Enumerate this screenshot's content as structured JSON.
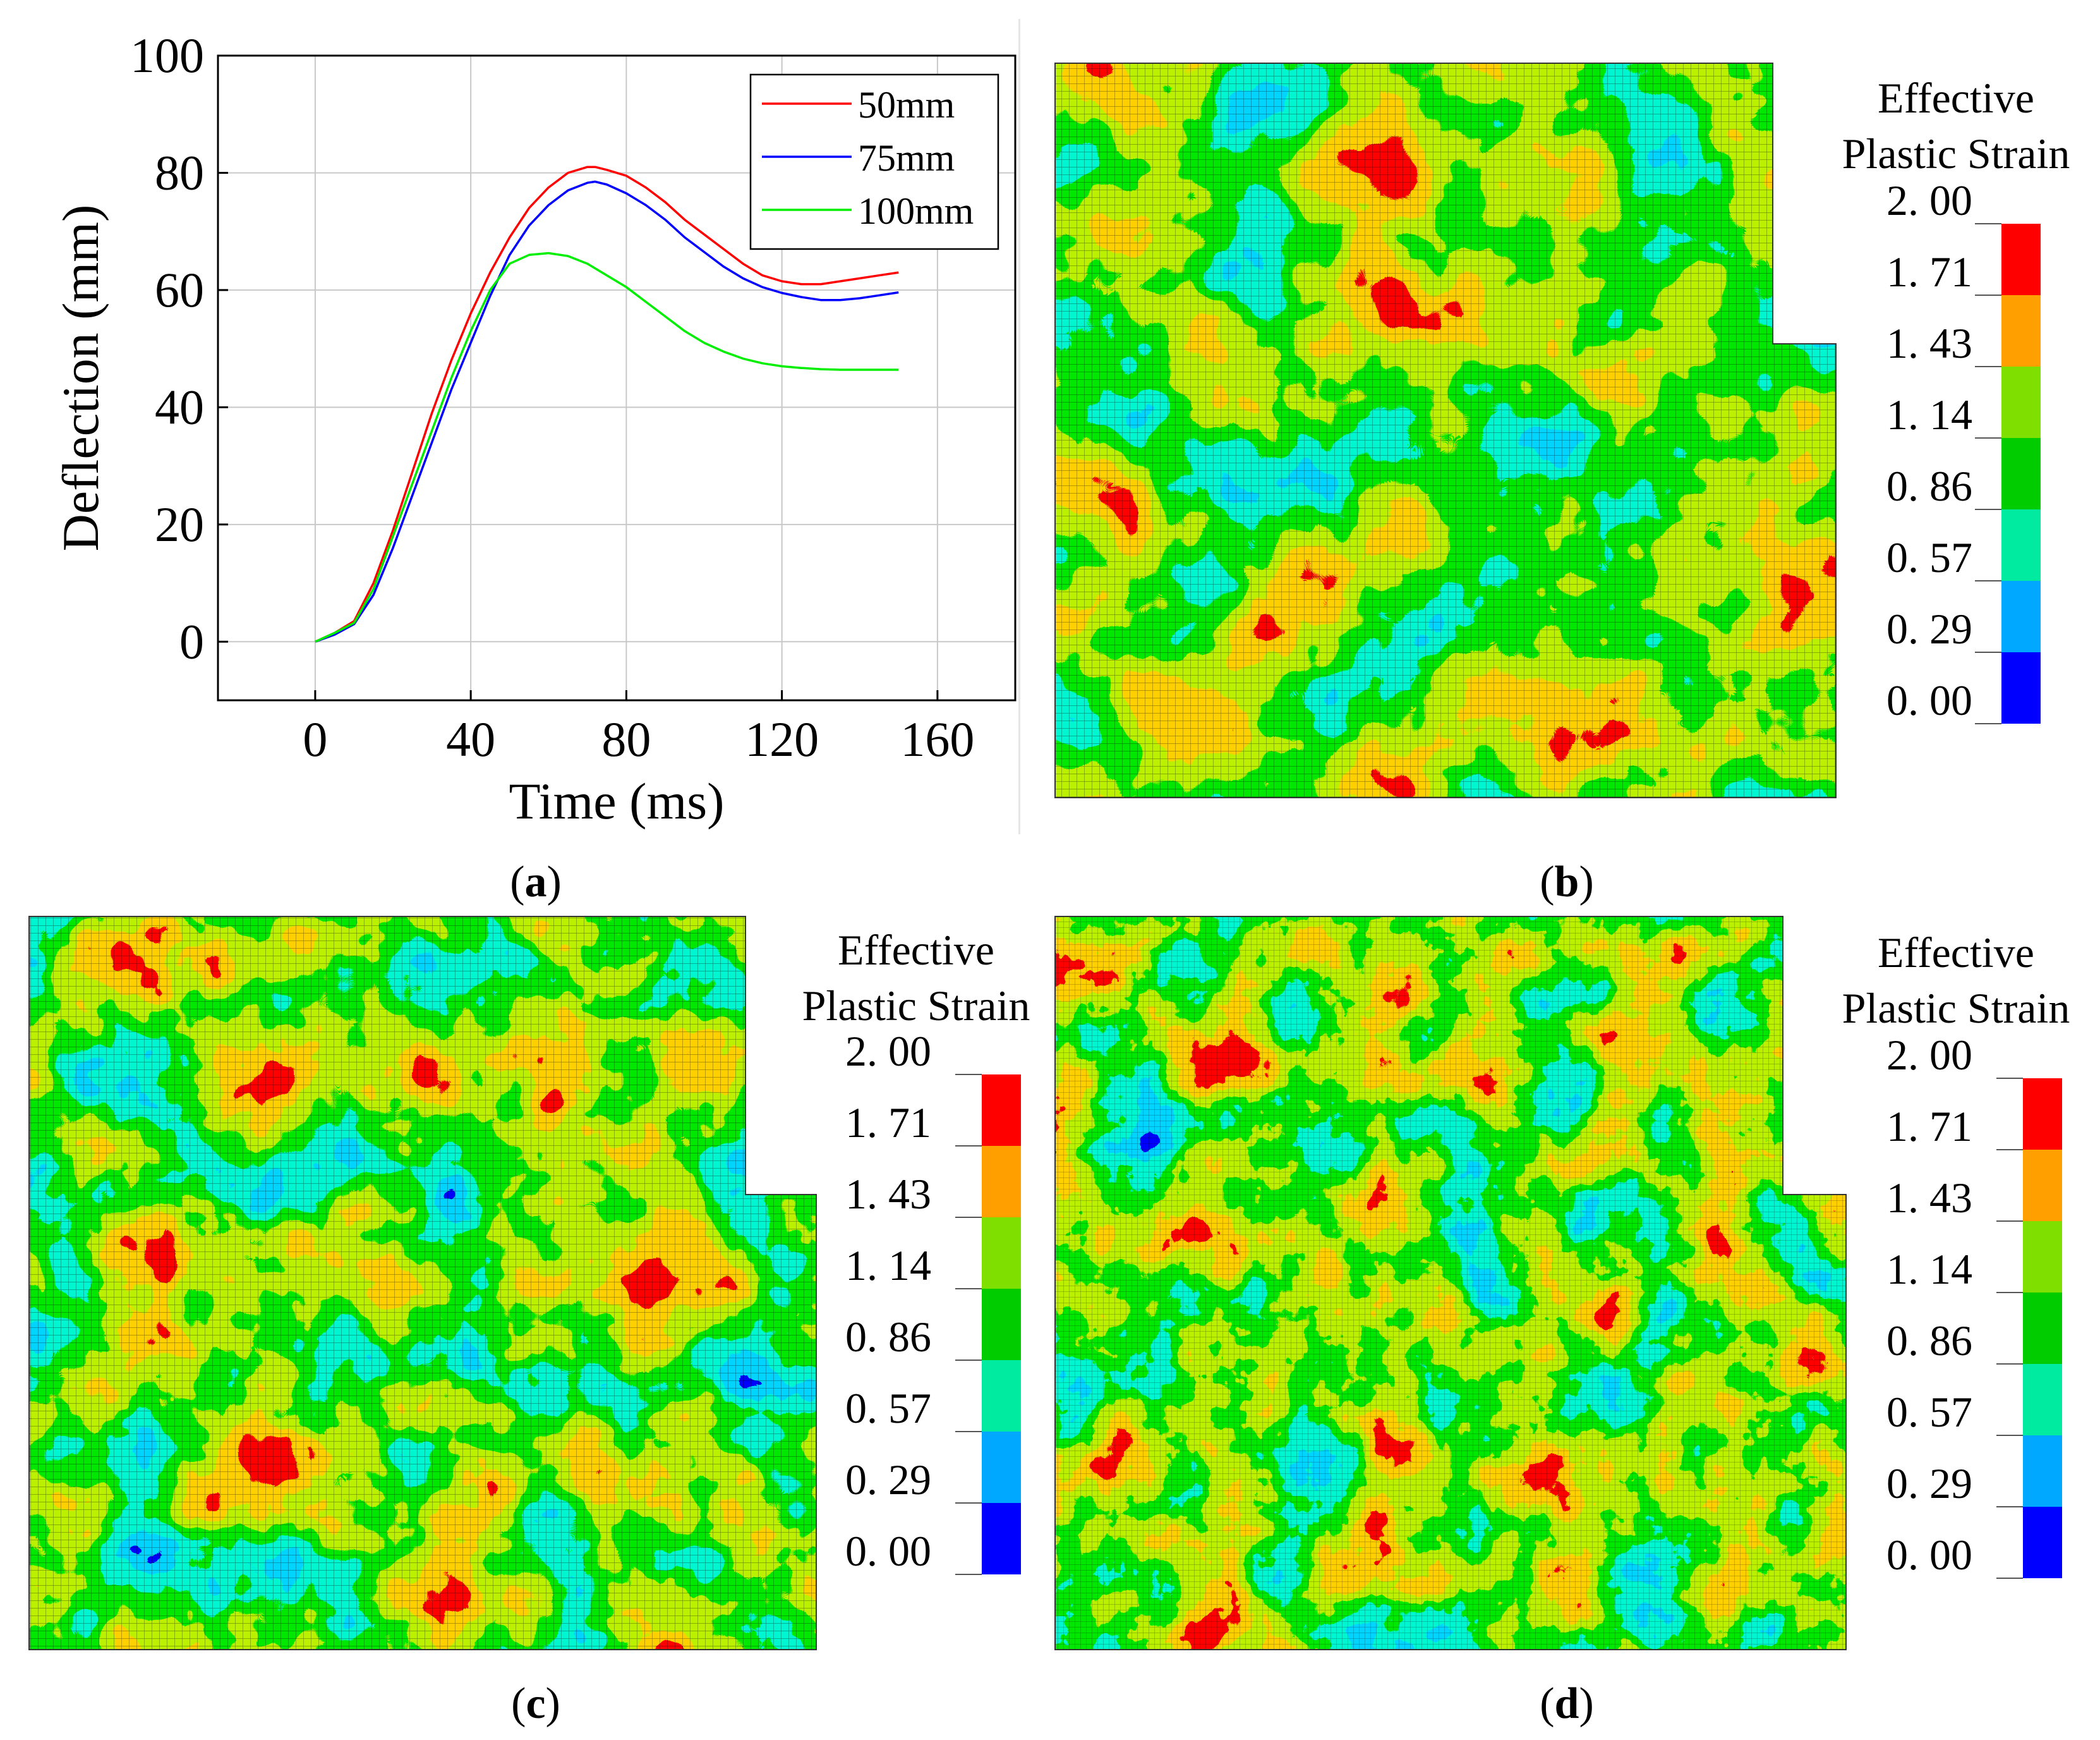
{
  "chart_data": [
    {
      "type": "line",
      "panel": "(a)",
      "xlabel": "Time (ms)",
      "ylabel": "Deflection (mm)",
      "xlim": [
        -25,
        180
      ],
      "ylim": [
        -10,
        100
      ],
      "xticks": [
        0,
        40,
        80,
        120,
        160
      ],
      "yticks": [
        0,
        20,
        40,
        60,
        80,
        100
      ],
      "grid": true,
      "legend_position": "top-right",
      "series": [
        {
          "name": "50mm",
          "color": "#ff0000",
          "x": [
            0,
            5,
            10,
            15,
            20,
            25,
            30,
            35,
            40,
            45,
            50,
            55,
            60,
            65,
            70,
            72,
            75,
            80,
            85,
            90,
            95,
            100,
            105,
            110,
            115,
            120,
            125,
            130,
            135,
            140,
            145,
            150
          ],
          "y": [
            0,
            1.5,
            3.5,
            10,
            19,
            29,
            39,
            48,
            56,
            63,
            69,
            74,
            77.5,
            80,
            81,
            81,
            80.5,
            79.5,
            77.5,
            75,
            72,
            69.5,
            67,
            64.5,
            62.5,
            61.5,
            61,
            61,
            61.5,
            62,
            62.5,
            63
          ]
        },
        {
          "name": "75mm",
          "color": "#0000ff",
          "x": [
            0,
            5,
            10,
            15,
            20,
            25,
            30,
            35,
            40,
            45,
            50,
            55,
            60,
            65,
            70,
            72,
            75,
            80,
            85,
            90,
            95,
            100,
            105,
            110,
            115,
            120,
            125,
            130,
            135,
            140,
            145,
            150
          ],
          "y": [
            0,
            1.2,
            3,
            8,
            16,
            25,
            34,
            43,
            51,
            59,
            66,
            71,
            74.5,
            77,
            78.3,
            78.5,
            78,
            76.5,
            74.5,
            72,
            69,
            66.5,
            64,
            62,
            60.5,
            59.5,
            58.8,
            58.3,
            58.3,
            58.6,
            59.1,
            59.6
          ]
        },
        {
          "name": "100mm",
          "color": "#00ee00",
          "x": [
            0,
            5,
            10,
            15,
            20,
            25,
            30,
            35,
            40,
            45,
            50,
            55,
            60,
            65,
            70,
            75,
            80,
            85,
            90,
            95,
            100,
            105,
            110,
            115,
            120,
            125,
            130,
            135,
            140,
            145,
            150
          ],
          "y": [
            0,
            1.5,
            3.2,
            9,
            18,
            27,
            36,
            45,
            53,
            60,
            64.5,
            66,
            66.3,
            65.8,
            64.5,
            62.5,
            60.5,
            58,
            55.5,
            53,
            51,
            49.5,
            48.3,
            47.5,
            47,
            46.7,
            46.5,
            46.4,
            46.4,
            46.4,
            46.4
          ]
        }
      ]
    },
    {
      "type": "heatmap",
      "panel": "(b)",
      "legend_title": [
        "Effective",
        "Plastic Strain"
      ],
      "scale_labels": [
        "2. 00",
        "1. 71",
        "1. 43",
        "1. 14",
        "0. 86",
        "0. 57",
        "0. 29",
        "0. 00"
      ],
      "scale_colors": [
        "#ff0000",
        "#ffa000",
        "#7fe000",
        "#00cc00",
        "#00eaa0",
        "#00a8ff",
        "#0000ff"
      ]
    },
    {
      "type": "heatmap",
      "panel": "(c)",
      "legend_title": [
        "Effective",
        "Plastic Strain"
      ],
      "scale_labels": [
        "2. 00",
        "1. 71",
        "1. 43",
        "1. 14",
        "0. 86",
        "0. 57",
        "0. 29",
        "0. 00"
      ],
      "scale_colors": [
        "#ff0000",
        "#ffa000",
        "#7fe000",
        "#00cc00",
        "#00eaa0",
        "#00a8ff",
        "#0000ff"
      ]
    },
    {
      "type": "heatmap",
      "panel": "(d)",
      "legend_title": [
        "Effective",
        "Plastic Strain"
      ],
      "scale_labels": [
        "2. 00",
        "1. 71",
        "1. 43",
        "1. 14",
        "0. 86",
        "0. 57",
        "0. 29",
        "0. 00"
      ],
      "scale_colors": [
        "#ff0000",
        "#ffa000",
        "#7fe000",
        "#00cc00",
        "#00eaa0",
        "#00a8ff",
        "#0000ff"
      ]
    }
  ],
  "captions": {
    "a": "a",
    "b": "b",
    "c": "c",
    "d": "d"
  }
}
